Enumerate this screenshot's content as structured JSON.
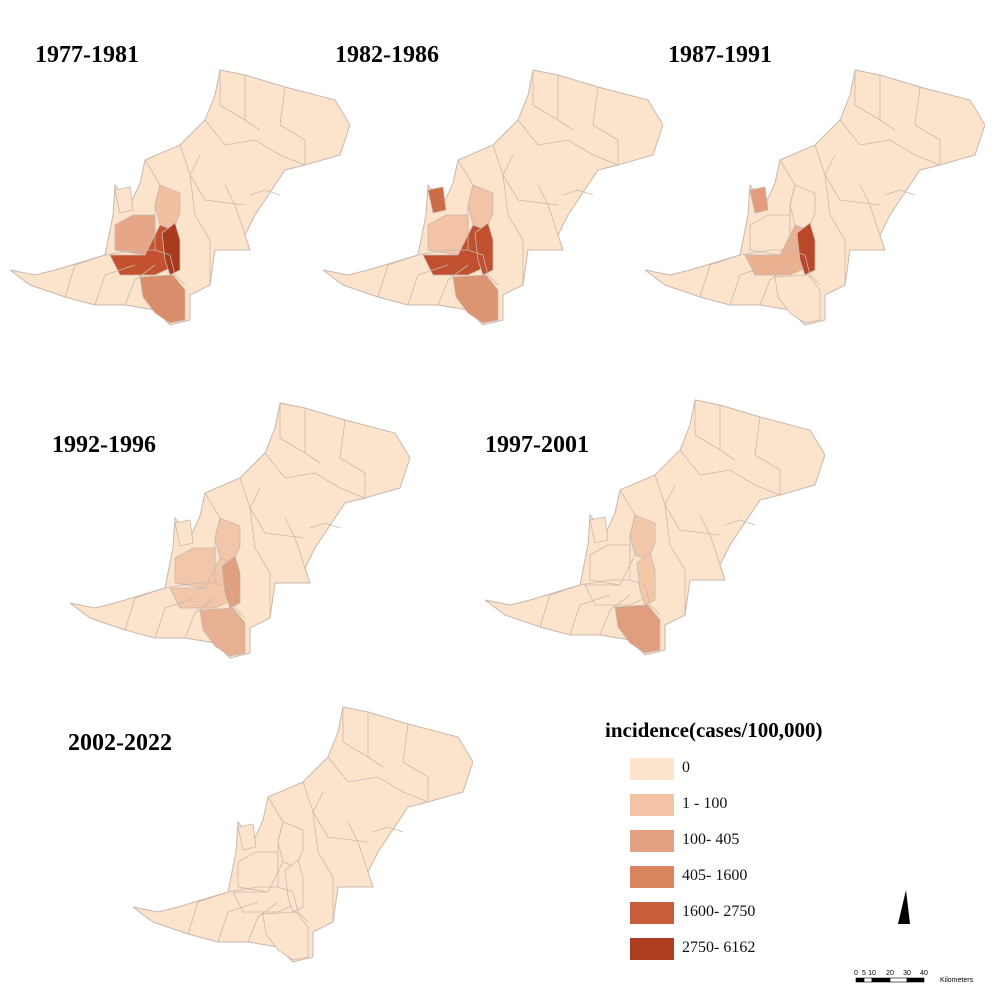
{
  "panels": [
    {
      "title": "1977-1981",
      "fills": {
        "r1": "#f2bfa0",
        "r2": "#e8a688",
        "r3": "#c4512f",
        "r4": "#a83a1e",
        "r5": "#d88e6a",
        "r6": "#fce3cc"
      }
    },
    {
      "title": "1982-1986",
      "fills": {
        "r1": "#f2c3a4",
        "r2": "#f2c3a4",
        "r3": "#c0502f",
        "r4": "#c0502f",
        "r5": "#dc9472",
        "r6": "#cd6c48"
      }
    },
    {
      "title": "1987-1991",
      "fills": {
        "r1": "#fce3cc",
        "r2": "#fce3cc",
        "r3": "#eab090",
        "r4": "#b9472a",
        "r5": "#fce3cc",
        "r6": "#e39c7c"
      }
    },
    {
      "title": "1992-1996",
      "fills": {
        "r1": "#f2c6a8",
        "r2": "#f2c6a8",
        "r3": "#f2c6a8",
        "r4": "#e0a080",
        "r5": "#e8b092",
        "r6": "#fce3cc"
      }
    },
    {
      "title": "1997-2001",
      "fills": {
        "r1": "#f3c8a9",
        "r2": "#fce3cc",
        "r3": "#fce3cc",
        "r4": "#f3c8a9",
        "r5": "#e09e7e",
        "r6": "#fce3cc"
      }
    },
    {
      "title": "2002-2022",
      "fills": {
        "r1": "#fce3cc",
        "r2": "#fce3cc",
        "r3": "#fce3cc",
        "r4": "#fce3cc",
        "r5": "#fce3cc",
        "r6": "#fce3cc"
      }
    }
  ],
  "legend": {
    "title": "incidence(cases/100,000)",
    "items": [
      {
        "label": "0",
        "color": "#fce3cc"
      },
      {
        "label": "1 - 100",
        "color": "#f2c3a4"
      },
      {
        "label": "100- 405",
        "color": "#e3a184"
      },
      {
        "label": "405- 1600",
        "color": "#d8845f"
      },
      {
        "label": "1600- 2750",
        "color": "#c85c3b"
      },
      {
        "label": "2750- 6162",
        "color": "#ad3d20"
      }
    ]
  },
  "scale": {
    "ticks": [
      "0",
      "5",
      "10",
      "20",
      "30",
      "40"
    ],
    "unit": "Kilometers"
  },
  "colors": {
    "base": "#fce3cc",
    "border": "#c9b8ad"
  },
  "icons": {
    "north_arrow": "north-arrow-icon"
  }
}
